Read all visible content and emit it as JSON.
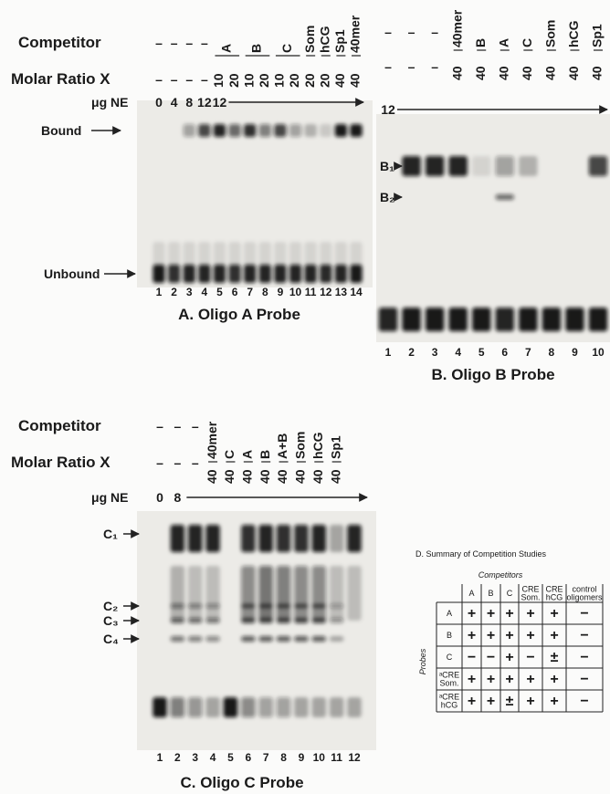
{
  "panel_a": {
    "competitor_label": "Competitor",
    "ratio_label": "Molar Ratio X",
    "ne_label": "μg NE",
    "competitors": [
      "–",
      "–",
      "–",
      "–",
      "A",
      null,
      "B",
      null,
      "C",
      null,
      "Som",
      "hCG",
      "Sp1",
      "40mer"
    ],
    "ratios": [
      "–",
      "–",
      "–",
      "–",
      "10",
      "20",
      "10",
      "20",
      "10",
      "20",
      "20",
      "20",
      "40",
      "40"
    ],
    "ne": [
      "0",
      "4",
      "8",
      "12",
      "12",
      null,
      null,
      null,
      null,
      null,
      null,
      null,
      null,
      null
    ],
    "band_labels": [
      "Bound",
      "Unbound"
    ],
    "lanes": [
      "1",
      "2",
      "3",
      "4",
      "5",
      "6",
      "7",
      "8",
      "9",
      "10",
      "11",
      "12",
      "13",
      "14"
    ],
    "caption": "A. Oligo A Probe"
  },
  "panel_b": {
    "competitors": [
      "–",
      "–",
      "–",
      "40mer",
      "B",
      "A",
      "C",
      "Som",
      "hCG",
      "Sp1"
    ],
    "ratios": [
      "–",
      "–",
      "–",
      "40",
      "40",
      "40",
      "40",
      "40",
      "40",
      "40"
    ],
    "ne": [
      "12",
      null,
      null,
      null,
      null,
      null,
      null,
      null,
      null,
      null
    ],
    "band_labels": [
      "B₁",
      "B₂"
    ],
    "lanes": [
      "1",
      "2",
      "3",
      "4",
      "5",
      "6",
      "7",
      "8",
      "9",
      "10"
    ],
    "caption": "B. Oligo B Probe"
  },
  "panel_c": {
    "competitor_label": "Competitor",
    "ratio_label": "Molar Ratio X",
    "ne_label": "μg NE",
    "competitors": [
      "–",
      "–",
      "–",
      "40mer",
      "C",
      "A",
      "B",
      "A+B",
      "Som",
      "hCG",
      "Sp1",
      null
    ],
    "ratios": [
      "–",
      "–",
      "–",
      "40",
      "40",
      "40",
      "40",
      "40",
      "40",
      "40",
      "40",
      null
    ],
    "ne": [
      "0",
      "8",
      null,
      null,
      null,
      null,
      null,
      null,
      null,
      null,
      null,
      null
    ],
    "band_labels": [
      "C₁",
      "C₂",
      "C₃",
      "C₄"
    ],
    "lanes": [
      "1",
      "2",
      "3",
      "4",
      "5",
      "6",
      "7",
      "8",
      "9",
      "10",
      "11",
      "12"
    ],
    "caption": "C. Oligo C Probe"
  },
  "table_d": {
    "title": "D. Summary of Competition Studies",
    "competitors_label": "Competitors",
    "probes_label": "Probes",
    "columns": [
      [
        "A"
      ],
      [
        "B"
      ],
      [
        "C"
      ],
      [
        "CRE",
        "Som."
      ],
      [
        "CRE",
        "hCG"
      ],
      [
        "control",
        "oligomers"
      ]
    ],
    "rows": [
      {
        "label": [
          "A"
        ],
        "cells": [
          "+",
          "+",
          "+",
          "+",
          "+",
          "−"
        ]
      },
      {
        "label": [
          "B"
        ],
        "cells": [
          "+",
          "+",
          "+",
          "+",
          "+",
          "−"
        ]
      },
      {
        "label": [
          "C"
        ],
        "cells": [
          "−",
          "−",
          "+",
          "−",
          "±",
          "−"
        ]
      },
      {
        "label": [
          "ᵃCRE",
          "Som."
        ],
        "cells": [
          "+",
          "+",
          "+",
          "+",
          "+",
          "−"
        ]
      },
      {
        "label": [
          "ᵃCRE",
          "hCG"
        ],
        "cells": [
          "+",
          "+",
          "±",
          "+",
          "+",
          "−"
        ]
      }
    ]
  }
}
